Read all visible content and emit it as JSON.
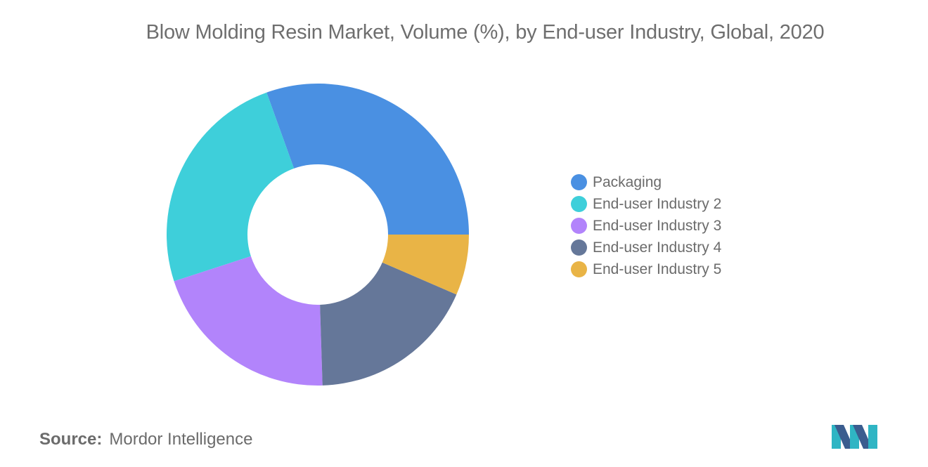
{
  "title": "Blow Molding Resin Market, Volume (%), by End-user Industry, Global, 2020",
  "chart_data": {
    "type": "pie",
    "donut": true,
    "title": "Blow Molding Resin Market, Volume (%), by End-user Industry, Global, 2020",
    "legend_position": "right",
    "slices": [
      {
        "label": "Packaging",
        "value": 30.5,
        "color": "#4a90e2"
      },
      {
        "label": "End-user Industry 2",
        "value": 24.5,
        "color": "#3ecfda"
      },
      {
        "label": "End-user Industry 3",
        "value": 20.5,
        "color": "#b284fb"
      },
      {
        "label": "End-user Industry 4",
        "value": 18.0,
        "color": "#657799"
      },
      {
        "label": "End-user Industry 5",
        "value": 6.5,
        "color": "#e9b446"
      }
    ]
  },
  "source": {
    "label": "Source:",
    "value": "Mordor Intelligence"
  },
  "logo": {
    "icon": "mordor-intelligence-logo",
    "colors": [
      "#3b5d8f",
      "#2fb5c4"
    ]
  }
}
